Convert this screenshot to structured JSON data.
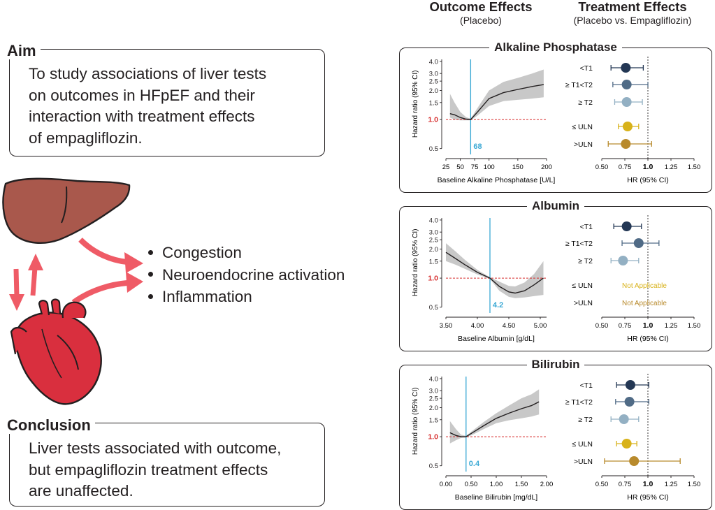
{
  "aim": {
    "title": "Aim",
    "lines": [
      "To study associations of liver tests",
      "on outcomes in HFpEF and their",
      "interaction with treatment effects",
      "of empagliflozin."
    ]
  },
  "mechanisms": [
    "Congestion",
    "Neuroendocrine activation",
    "Inflammation"
  ],
  "conclusion": {
    "title": "Conclusion",
    "lines": [
      "Liver tests associated with outcome,",
      "but empagliflozin treatment effects",
      "are unaffected."
    ]
  },
  "columns": {
    "outcome": {
      "title": "Outcome Effects",
      "subtitle": "(Placebo)"
    },
    "treatment": {
      "title": "Treatment Effects",
      "subtitle": "(Placebo vs. Empagliflozin)"
    }
  },
  "colors": {
    "t1": "#233754",
    "t12": "#506b86",
    "t2": "#93b0c3",
    "uln_low": "#d8b21a",
    "uln_high": "#b88a2c",
    "reference": "#d62b2b",
    "cutpoint": "#3aa8d4",
    "band": "#c8c8c8",
    "heart": "#d92f3e",
    "liver": "#a9584c",
    "arrow": "#ef5b66"
  },
  "chart_data": [
    {
      "type": "line",
      "title": "Alkaline Phosphatase",
      "ylabel": "Hazard ratio (95% CI)",
      "xlabel": "Baseline Alkaline Phosphatase [U/L]",
      "xlim": [
        25,
        200
      ],
      "xticks": [
        "25",
        "50",
        "75",
        "100",
        "150",
        "200"
      ],
      "ylim": [
        0.45,
        4.2
      ],
      "yscale": "log",
      "yticks": [
        "4.0",
        "3.0",
        "2.5",
        "2.0",
        "1.5",
        "1.0",
        "0.5"
      ],
      "reference_line": 1.0,
      "cutpoint": {
        "x": 68,
        "label": "68"
      },
      "x": [
        32,
        40,
        50,
        60,
        68,
        80,
        100,
        125,
        150,
        175,
        195
      ],
      "y": [
        1.15,
        1.12,
        1.05,
        1.01,
        1.0,
        1.2,
        1.65,
        1.9,
        2.05,
        2.2,
        2.3
      ],
      "lower": [
        1.05,
        1.0,
        0.98,
        0.98,
        0.98,
        1.1,
        1.38,
        1.55,
        1.6,
        1.65,
        1.7
      ],
      "upper": [
        1.85,
        1.5,
        1.2,
        1.06,
        1.02,
        1.32,
        2.0,
        2.45,
        2.7,
        3.0,
        3.3
      ]
    },
    {
      "type": "scatter",
      "title": "Alkaline Phosphatase",
      "xlabel": "HR (95% CI)",
      "xlim": [
        0.5,
        1.5
      ],
      "xticks": [
        "0.50",
        "0.75",
        "1.0",
        "1.25",
        "1.50"
      ],
      "reference_line": 1.0,
      "rows": [
        {
          "label": "<T1",
          "hr": 0.76,
          "lo": 0.6,
          "hi": 0.95,
          "color": "t1"
        },
        {
          "label": "≥ T1<T2",
          "hr": 0.77,
          "lo": 0.62,
          "hi": 1.0,
          "color": "t12"
        },
        {
          "label": "≥ T2",
          "hr": 0.77,
          "lo": 0.64,
          "hi": 0.94,
          "color": "t2"
        },
        {
          "label": "≤ ULN",
          "hr": 0.78,
          "lo": 0.68,
          "hi": 0.9,
          "color": "uln_low"
        },
        {
          "label": ">ULN",
          "hr": 0.76,
          "lo": 0.57,
          "hi": 1.04,
          "color": "uln_high"
        }
      ]
    },
    {
      "type": "line",
      "title": "Albumin",
      "ylabel": "Hazard ratio (95% CI)",
      "xlabel": "Baseline Albumin [g/dL]",
      "xlim": [
        3.5,
        5.1
      ],
      "xticks": [
        "3.50",
        "4.00",
        "4.50",
        "5.00"
      ],
      "ylim": [
        0.45,
        4.2
      ],
      "yscale": "log",
      "yticks": [
        "4.0",
        "3.0",
        "2.5",
        "2.0",
        "1.5",
        "1.0",
        "0.5"
      ],
      "reference_line": 1.0,
      "cutpoint": {
        "x": 4.2,
        "label": "4.2"
      },
      "x": [
        3.5,
        3.65,
        3.8,
        4.0,
        4.2,
        4.35,
        4.5,
        4.6,
        4.75,
        4.9,
        5.05
      ],
      "y": [
        1.85,
        1.6,
        1.38,
        1.15,
        1.0,
        0.82,
        0.72,
        0.7,
        0.74,
        0.85,
        1.0
      ],
      "lower": [
        1.5,
        1.38,
        1.25,
        1.09,
        0.98,
        0.74,
        0.64,
        0.62,
        0.63,
        0.65,
        0.67
      ],
      "upper": [
        2.3,
        1.9,
        1.55,
        1.22,
        1.02,
        0.92,
        0.83,
        0.82,
        0.9,
        1.1,
        1.5
      ]
    },
    {
      "type": "scatter",
      "title": "Albumin",
      "xlabel": "HR (95% CI)",
      "xlim": [
        0.5,
        1.5
      ],
      "xticks": [
        "0.50",
        "0.75",
        "1.0",
        "1.25",
        "1.50"
      ],
      "reference_line": 1.0,
      "rows": [
        {
          "label": "<T1",
          "hr": 0.77,
          "lo": 0.63,
          "hi": 0.93,
          "color": "t1"
        },
        {
          "label": "≥ T1<T2",
          "hr": 0.9,
          "lo": 0.72,
          "hi": 1.12,
          "color": "t12"
        },
        {
          "label": "≥ T2",
          "hr": 0.73,
          "lo": 0.6,
          "hi": 0.9,
          "color": "t2"
        },
        {
          "label": "≤ ULN",
          "note": "Not Applicable",
          "color": "uln_low"
        },
        {
          "label": ">ULN",
          "note": "Not Applicable",
          "color": "uln_high"
        }
      ]
    },
    {
      "type": "line",
      "title": "Bilirubin",
      "ylabel": "Hazard ratio (95% CI)",
      "xlabel": "Baseline Bilirubin [mg/dL]",
      "xlim": [
        0,
        2
      ],
      "xticks": [
        "0.00",
        "0.50",
        "1.00",
        "1.50",
        "2.00"
      ],
      "ylim": [
        0.45,
        4.2
      ],
      "yscale": "log",
      "yticks": [
        "4.0",
        "3.0",
        "2.5",
        "2.0",
        "1.5",
        "1.0",
        "0.5"
      ],
      "reference_line": 1.0,
      "cutpoint": {
        "x": 0.4,
        "label": "0.4"
      },
      "x": [
        0.08,
        0.2,
        0.3,
        0.4,
        0.55,
        0.75,
        1.0,
        1.25,
        1.5,
        1.7,
        1.85
      ],
      "y": [
        1.1,
        1.03,
        1.0,
        1.0,
        1.12,
        1.3,
        1.55,
        1.75,
        1.95,
        2.1,
        2.3
      ],
      "lower": [
        0.85,
        0.92,
        0.97,
        0.98,
        1.06,
        1.2,
        1.38,
        1.48,
        1.55,
        1.62,
        1.7
      ],
      "upper": [
        1.45,
        1.2,
        1.05,
        1.02,
        1.18,
        1.42,
        1.75,
        2.1,
        2.5,
        2.75,
        3.1
      ]
    },
    {
      "type": "scatter",
      "title": "Bilirubin",
      "xlabel": "HR (95% CI)",
      "xlim": [
        0.5,
        1.5
      ],
      "xticks": [
        "0.50",
        "0.75",
        "1.0",
        "1.25",
        "1.50"
      ],
      "reference_line": 1.0,
      "rows": [
        {
          "label": "<T1",
          "hr": 0.81,
          "lo": 0.66,
          "hi": 1.01,
          "color": "t1"
        },
        {
          "label": "≥ T1<T2",
          "hr": 0.8,
          "lo": 0.65,
          "hi": 1.01,
          "color": "t12"
        },
        {
          "label": "≥ T2",
          "hr": 0.74,
          "lo": 0.6,
          "hi": 0.9,
          "color": "t2"
        },
        {
          "label": "≤ ULN",
          "hr": 0.77,
          "lo": 0.66,
          "hi": 0.88,
          "color": "uln_low"
        },
        {
          "label": ">ULN",
          "hr": 0.85,
          "lo": 0.53,
          "hi": 1.35,
          "color": "uln_high"
        }
      ]
    }
  ]
}
